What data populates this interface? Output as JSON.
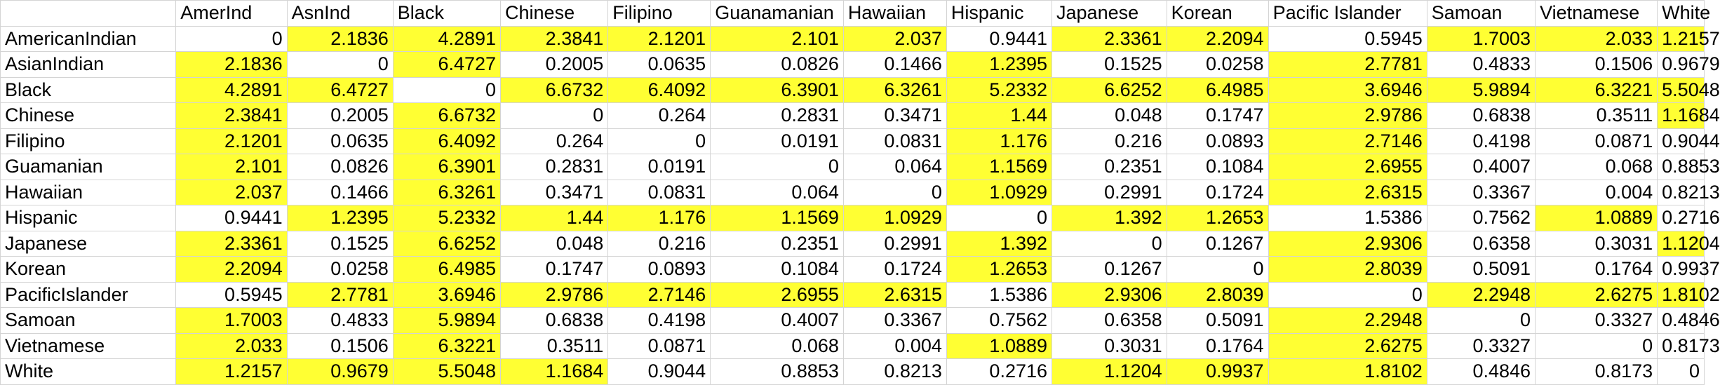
{
  "columns": [
    "",
    "AmerInd",
    "AsnInd",
    "Black",
    "Chinese",
    "Filipino",
    "Guanamanian",
    "Hawaiian",
    "Hispanic",
    "Japanese",
    "Korean",
    "Pacific Islander",
    "Samoan",
    "Vietnamese",
    "White"
  ],
  "rows": [
    {
      "label": "AmericanIndian",
      "values": [
        "0",
        "2.1836",
        "4.2891",
        "2.3841",
        "2.1201",
        "2.101",
        "2.037",
        "0.9441",
        "2.3361",
        "2.2094",
        "0.5945",
        "1.7003",
        "2.033",
        "1.2157"
      ]
    },
    {
      "label": "AsianIndian",
      "values": [
        "2.1836",
        "0",
        "6.4727",
        "0.2005",
        "0.0635",
        "0.0826",
        "0.1466",
        "1.2395",
        "0.1525",
        "0.0258",
        "2.7781",
        "0.4833",
        "0.1506",
        "0.9679"
      ]
    },
    {
      "label": "Black",
      "values": [
        "4.2891",
        "6.4727",
        "0",
        "6.6732",
        "6.4092",
        "6.3901",
        "6.3261",
        "5.2332",
        "6.6252",
        "6.4985",
        "3.6946",
        "5.9894",
        "6.3221",
        "5.5048"
      ]
    },
    {
      "label": "Chinese",
      "values": [
        "2.3841",
        "0.2005",
        "6.6732",
        "0",
        "0.264",
        "0.2831",
        "0.3471",
        "1.44",
        "0.048",
        "0.1747",
        "2.9786",
        "0.6838",
        "0.3511",
        "1.1684"
      ]
    },
    {
      "label": "Filipino",
      "values": [
        "2.1201",
        "0.0635",
        "6.4092",
        "0.264",
        "0",
        "0.0191",
        "0.0831",
        "1.176",
        "0.216",
        "0.0893",
        "2.7146",
        "0.4198",
        "0.0871",
        "0.9044"
      ]
    },
    {
      "label": "Guamanian",
      "values": [
        "2.101",
        "0.0826",
        "6.3901",
        "0.2831",
        "0.0191",
        "0",
        "0.064",
        "1.1569",
        "0.2351",
        "0.1084",
        "2.6955",
        "0.4007",
        "0.068",
        "0.8853"
      ]
    },
    {
      "label": "Hawaiian",
      "values": [
        "2.037",
        "0.1466",
        "6.3261",
        "0.3471",
        "0.0831",
        "0.064",
        "0",
        "1.0929",
        "0.2991",
        "0.1724",
        "2.6315",
        "0.3367",
        "0.004",
        "0.8213"
      ]
    },
    {
      "label": "Hispanic",
      "values": [
        "0.9441",
        "1.2395",
        "5.2332",
        "1.44",
        "1.176",
        "1.1569",
        "1.0929",
        "0",
        "1.392",
        "1.2653",
        "1.5386",
        "0.7562",
        "1.0889",
        "0.2716"
      ]
    },
    {
      "label": "Japanese",
      "values": [
        "2.3361",
        "0.1525",
        "6.6252",
        "0.048",
        "0.216",
        "0.2351",
        "0.2991",
        "1.392",
        "0",
        "0.1267",
        "2.9306",
        "0.6358",
        "0.3031",
        "1.1204"
      ]
    },
    {
      "label": "Korean",
      "values": [
        "2.2094",
        "0.0258",
        "6.4985",
        "0.1747",
        "0.0893",
        "0.1084",
        "0.1724",
        "1.2653",
        "0.1267",
        "0",
        "2.8039",
        "0.5091",
        "0.1764",
        "0.9937"
      ]
    },
    {
      "label": "PacificIslander",
      "values": [
        "0.5945",
        "2.7781",
        "3.6946",
        "2.9786",
        "2.7146",
        "2.6955",
        "2.6315",
        "1.5386",
        "2.9306",
        "2.8039",
        "0",
        "2.2948",
        "2.6275",
        "1.8102"
      ]
    },
    {
      "label": "Samoan",
      "values": [
        "1.7003",
        "0.4833",
        "5.9894",
        "0.6838",
        "0.4198",
        "0.4007",
        "0.3367",
        "0.7562",
        "0.6358",
        "0.5091",
        "2.2948",
        "0",
        "0.3327",
        "0.4846"
      ]
    },
    {
      "label": "Vietnamese",
      "values": [
        "2.033",
        "0.1506",
        "6.3221",
        "0.3511",
        "0.0871",
        "0.068",
        "0.004",
        "1.0889",
        "0.3031",
        "0.1764",
        "2.6275",
        "0.3327",
        "0",
        "0.8173"
      ]
    },
    {
      "label": "White",
      "values": [
        "1.2157",
        "0.9679",
        "5.5048",
        "1.1684",
        "0.9044",
        "0.8853",
        "0.8213",
        "0.2716",
        "1.1204",
        "0.9937",
        "1.8102",
        "0.4846",
        "0.8173",
        "0"
      ]
    }
  ],
  "highlight": {
    "color": "#ffff33",
    "cells": [
      [
        0,
        0,
        0,
        0,
        1,
        1,
        1,
        1,
        1,
        1,
        1,
        1,
        1,
        1,
        1,
        1,
        1,
        1,
        1,
        1,
        1,
        1,
        1,
        1,
        1,
        1,
        1,
        1,
        1
      ],
      [
        1,
        1,
        1,
        1,
        1,
        1,
        1,
        1,
        1,
        1,
        1,
        1,
        1,
        1,
        1,
        1,
        1,
        1,
        1,
        1,
        1,
        1,
        1,
        1,
        1,
        1,
        1,
        1,
        1
      ]
    ],
    "matrix": [
      [
        0,
        1,
        1,
        1,
        1,
        1,
        1,
        0,
        1,
        1,
        0,
        1,
        1,
        1
      ],
      [
        1,
        0,
        1,
        0,
        0,
        0,
        0,
        1,
        0,
        0,
        1,
        0,
        0,
        0
      ],
      [
        1,
        1,
        0,
        1,
        1,
        1,
        1,
        1,
        1,
        1,
        1,
        1,
        1,
        1
      ],
      [
        1,
        0,
        1,
        0,
        0,
        0,
        0,
        1,
        0,
        0,
        1,
        0,
        0,
        1
      ],
      [
        1,
        0,
        1,
        0,
        0,
        0,
        0,
        1,
        0,
        0,
        1,
        0,
        0,
        0
      ],
      [
        1,
        0,
        1,
        0,
        0,
        0,
        0,
        1,
        0,
        0,
        1,
        0,
        0,
        0
      ],
      [
        1,
        0,
        1,
        0,
        0,
        0,
        0,
        1,
        0,
        0,
        1,
        0,
        0,
        0
      ],
      [
        0,
        1,
        1,
        1,
        1,
        1,
        1,
        0,
        1,
        1,
        0,
        0,
        1,
        0
      ],
      [
        1,
        0,
        1,
        0,
        0,
        0,
        0,
        1,
        0,
        0,
        1,
        0,
        0,
        1
      ],
      [
        1,
        0,
        1,
        0,
        0,
        0,
        0,
        1,
        0,
        0,
        1,
        0,
        0,
        0
      ],
      [
        0,
        1,
        1,
        1,
        1,
        1,
        1,
        0,
        1,
        1,
        0,
        1,
        1,
        1
      ],
      [
        1,
        0,
        1,
        0,
        0,
        0,
        0,
        0,
        0,
        0,
        1,
        0,
        0,
        0
      ],
      [
        1,
        0,
        1,
        0,
        0,
        0,
        0,
        1,
        0,
        0,
        1,
        0,
        0,
        0
      ],
      [
        1,
        1,
        1,
        1,
        0,
        0,
        0,
        0,
        1,
        1,
        1,
        0,
        0,
        0
      ]
    ]
  }
}
